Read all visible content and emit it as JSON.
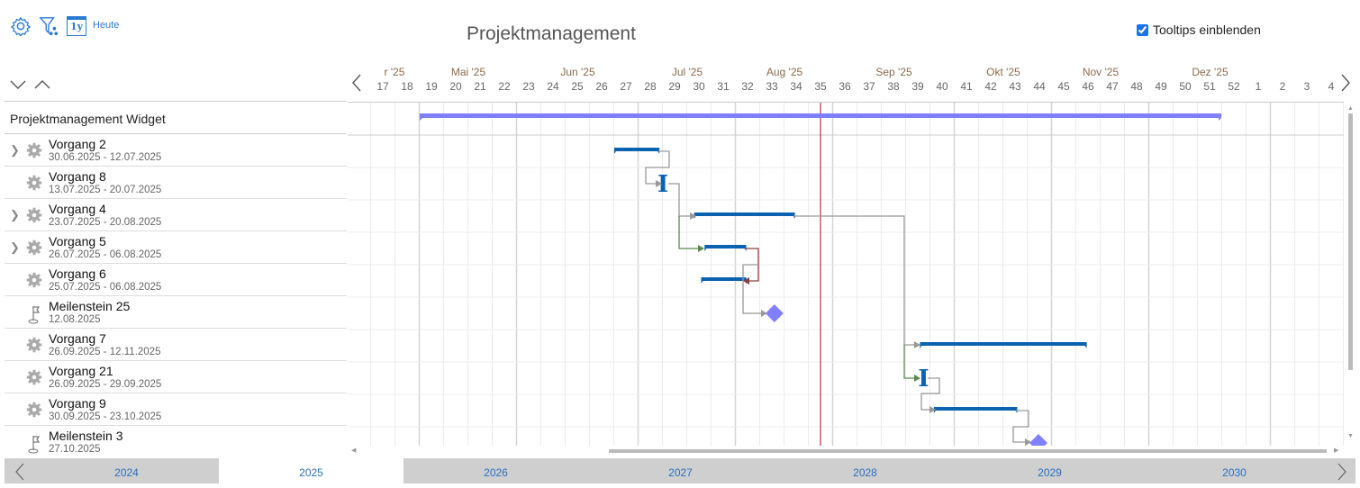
{
  "toolbar": {
    "settings_icon": "gear-icon",
    "filter_icon": "filter-network-icon",
    "year_icon": "calendar-1y-icon",
    "year_icon_text": "1y",
    "today_label": "Heute"
  },
  "title": "Projektmanagement",
  "tooltips": {
    "label": "Tooltips einblenden",
    "checked": true
  },
  "project": {
    "name": "Projektmanagement Widget"
  },
  "colors": {
    "bar": "#0a62b0",
    "summary": "#7f7ff7",
    "milestone": "#8080ff",
    "today": "#b00020",
    "year_bar": "#cfcfcf",
    "link": "#999999",
    "link_green": "#5a8a4a",
    "link_red": "#8a4040"
  },
  "timeline": {
    "months": [
      "r '25",
      "Mai '25",
      "Jun '25",
      "Jul '25",
      "Aug '25",
      "Sep '25",
      "Okt '25",
      "Nov '25",
      "Dez '25"
    ],
    "weeks": [
      "17",
      "18",
      "19",
      "20",
      "21",
      "22",
      "23",
      "24",
      "25",
      "26",
      "27",
      "28",
      "29",
      "30",
      "31",
      "32",
      "33",
      "34",
      "35",
      "36",
      "37",
      "38",
      "39",
      "40",
      "41",
      "42",
      "43",
      "44",
      "45",
      "46",
      "47",
      "48",
      "49",
      "50",
      "51",
      "52",
      "1",
      "2",
      "3",
      "4"
    ],
    "today_week": "35"
  },
  "tasks": [
    {
      "name": "Vorgang 2",
      "dates": "30.06.2025 - 12.07.2025",
      "type": "task",
      "expandable": true,
      "start": "2025-06-30",
      "end": "2025-07-12"
    },
    {
      "name": "Vorgang 8",
      "dates": "13.07.2025 - 20.07.2025",
      "type": "task",
      "expandable": false,
      "start": "2025-07-13",
      "end": "2025-07-20",
      "short": true
    },
    {
      "name": "Vorgang 4",
      "dates": "23.07.2025 - 20.08.2025",
      "type": "task",
      "expandable": true,
      "start": "2025-07-23",
      "end": "2025-08-20"
    },
    {
      "name": "Vorgang 5",
      "dates": "26.07.2025 - 06.08.2025",
      "type": "task",
      "expandable": true,
      "start": "2025-07-26",
      "end": "2025-08-06"
    },
    {
      "name": "Vorgang 6",
      "dates": "25.07.2025 - 06.08.2025",
      "type": "task",
      "expandable": false,
      "start": "2025-07-25",
      "end": "2025-08-06"
    },
    {
      "name": "Meilenstein 25",
      "dates": "12.08.2025",
      "type": "milestone",
      "expandable": false,
      "start": "2025-08-12"
    },
    {
      "name": "Vorgang 7",
      "dates": "26.09.2025 - 12.11.2025",
      "type": "task",
      "expandable": false,
      "start": "2025-09-26",
      "end": "2025-11-12"
    },
    {
      "name": "Vorgang 21",
      "dates": "26.09.2025 - 29.09.2025",
      "type": "task",
      "expandable": false,
      "start": "2025-09-26",
      "end": "2025-09-29",
      "short": true
    },
    {
      "name": "Vorgang 9",
      "dates": "30.09.2025 - 23.10.2025",
      "type": "task",
      "expandable": false,
      "start": "2025-09-30",
      "end": "2025-10-23"
    },
    {
      "name": "Meilenstein 3",
      "dates": "27.10.2025",
      "type": "milestone",
      "expandable": false,
      "start": "2025-10-27"
    }
  ],
  "years": [
    "2024",
    "2025",
    "2026",
    "2027",
    "2028",
    "2029",
    "2030"
  ],
  "selected_year": "2025"
}
